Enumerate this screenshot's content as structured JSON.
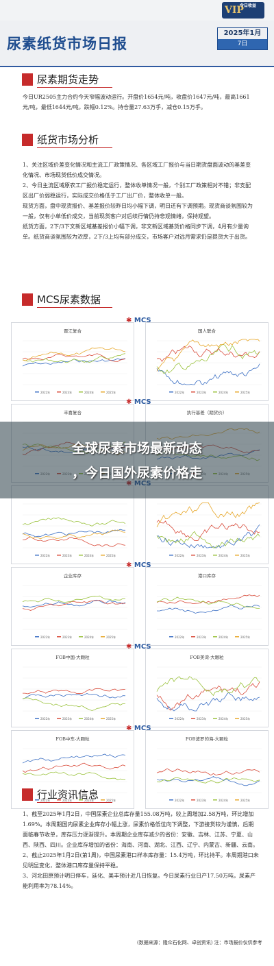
{
  "brand": {
    "name": "VIP",
    "sub": "今日收益"
  },
  "header": {
    "title": "尿素纸货市场日报",
    "year_month": "2025年1月",
    "day": "7日"
  },
  "sections": [
    {
      "title": "尿素期货走势"
    },
    {
      "title": "纸货市场分析"
    },
    {
      "title": "MCS尿素数据"
    },
    {
      "title": "行业资讯信息"
    }
  ],
  "futures_text": "今日UR2505主力合约今天窄幅波动运行。开盘价1654元/吨，收盘价1647元/吨，最高1661元/吨，最低1644元/吨，跌幅0.12%。持仓量27.63万手，减仓0.15万手。",
  "paper_text": [
    "1、关注区域价差变化情况和主流工厂政策情况、各区域工厂报价与当日期货盘面波动的基差变化情况、市场现货低价成交情况。",
    "2、今日主流区域原农工厂报价稳定运行，整体收单情况一般，个别工厂政策相对不错；非支配区出厂价弱稳运行，实际成交价格低于工厂出厂价，整体收单一般。",
    "现货方面，盘中现货报价、基差报价较昨日均小幅下调，明日还有下调预期。现货商谈氛围较为一般，仅有小单低价成交，当前现货客户对后续行情仍持悲观情绪，保持观望。",
    "纸货方面，2下/3下文新区域基差报价小幅下调，非文新区域基货价格同步下调，4月有少量询单。纸货商谈氛围较为浓厚，2下/3上均有部分成交，市场客户对远月需求仍是提货大于出货。"
  ],
  "mcs_label": "MCS",
  "charts": [
    {
      "title": "晋江复合"
    },
    {
      "title": "国人联合"
    },
    {
      "title": "丰喜复合"
    },
    {
      "title": "执行基差（期货价）"
    },
    {
      "title": ""
    },
    {
      "title": ""
    },
    {
      "title": "企业库存"
    },
    {
      "title": "港口库存"
    },
    {
      "title": "FOB中国-大颗粒"
    },
    {
      "title": "FOB美湾-大颗粒"
    },
    {
      "title": "FOB中东-大颗粒"
    },
    {
      "title": "FOB波罗的海-大颗粒"
    }
  ],
  "legend": [
    "2022年",
    "2023年",
    "2024年",
    "2025年"
  ],
  "colors": {
    "s2022": "#3b6fc4",
    "s2023": "#d94b3a",
    "s2024": "#9ac23c",
    "s2025": "#e7a72a"
  },
  "banner": {
    "line1": "全球尿素市场最新动态",
    "line2": "，今日国外尿素价格走"
  },
  "news_text": [
    "1、截至2025年1月2日，中国尿素企业总库存量155.08万吨，较上周增加2.58万吨，环比增加1.69%。本周期国内尿素企业库存小幅上涨，尿素价格低位向下调整，下游接货较为谨慎，后期面临春节收单，库存压力逐渐提升。本周期企业库存减少的省份：安徽、吉林、江苏、宁夏、山西、陕西、四川。企业库存增加的省份：海南、河南、湖北、江西、辽宁、内蒙古、新疆、云南。",
    "2、截止2025年1月2日(第1周)，中国尿素港口样本库存量：15.4万吨，环比持平。本周期港口未见明显变化，整体港口库存量保持平稳。",
    "3、河北田原预计明日停车，延化、美丰预计近几日恢复。今日尿素行业日产17.50万吨，尿素产能利用率为78.14%。"
  ],
  "footer": "(数据来源：隆众石化网、卓创资讯) 注：市场报价仅供参考"
}
